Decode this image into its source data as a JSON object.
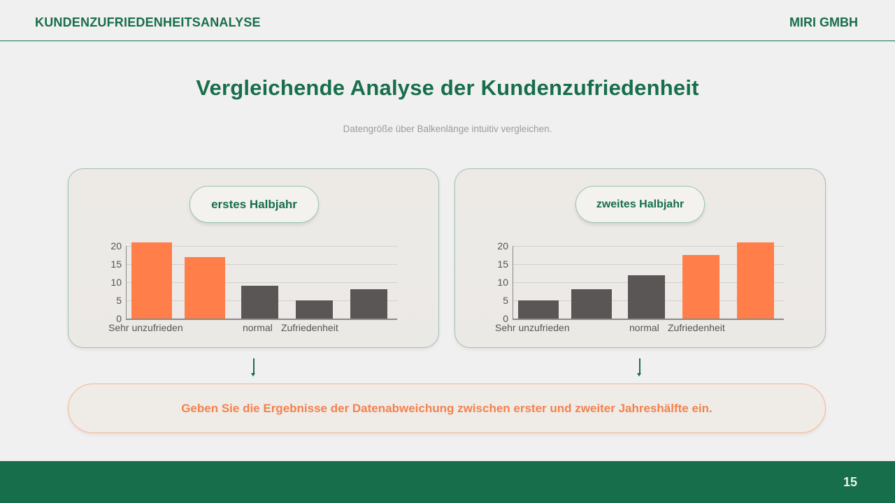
{
  "header": {
    "left_title": "KUNDENZUFRIEDENHEITSANALYSE",
    "right_title": "MIRI GMBH"
  },
  "main": {
    "title": "Vergleichende Analyse der Kundenzufriedenheit",
    "subtitle": "Datengröße über Balkenlänge intuitiv vergleichen.",
    "callout": "Geben Sie die Ergebnisse der Datenabweichung zwischen erster und zweiter Jahreshälfte ein."
  },
  "footer": {
    "page_number": "15"
  },
  "colors": {
    "brand_green": "#176e4b",
    "highlight_orange": "#ff7e4a",
    "neutral_bar": "#5a5655",
    "background": "#f1f0f0"
  },
  "chart_data": [
    {
      "type": "bar",
      "title": "erstes Halbjahr",
      "categories": [
        "Sehr unzufrieden",
        "",
        "normal",
        "",
        "Zufriedenheit"
      ],
      "x_tick_labels": [
        "Sehr unzufrieden",
        "normal",
        "Zufriedenheit"
      ],
      "values": [
        21,
        17,
        9,
        5,
        8
      ],
      "bar_colors": [
        "#ff7e4a",
        "#ff7e4a",
        "#5a5655",
        "#5a5655",
        "#5a5655"
      ],
      "yticks": [
        "0",
        "5",
        "10",
        "15",
        "20"
      ],
      "ylim": [
        0,
        20
      ],
      "xlabel": "",
      "ylabel": "",
      "grid": true,
      "legend": null
    },
    {
      "type": "bar",
      "title": "zweites Halbjahr",
      "categories": [
        "Sehr unzufrieden",
        "",
        "normal",
        "",
        "Zufriedenheit"
      ],
      "x_tick_labels": [
        "Sehr unzufrieden",
        "normal",
        "Zufriedenheit"
      ],
      "values": [
        5,
        8,
        12,
        17.5,
        21
      ],
      "bar_colors": [
        "#5a5655",
        "#5a5655",
        "#5a5655",
        "#ff7e4a",
        "#ff7e4a"
      ],
      "yticks": [
        "0",
        "5",
        "10",
        "15",
        "20"
      ],
      "ylim": [
        0,
        20
      ],
      "xlabel": "",
      "ylabel": "",
      "grid": true,
      "legend": null
    }
  ]
}
